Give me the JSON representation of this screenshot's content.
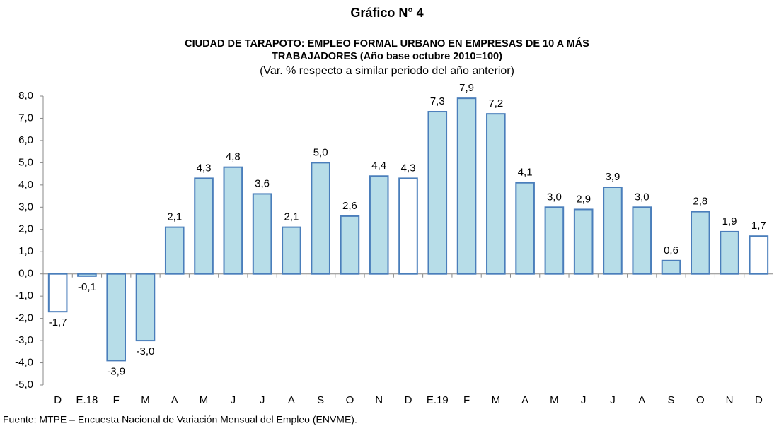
{
  "chart_data": {
    "type": "bar",
    "title": "Gráfico N° 4",
    "subtitle": [
      "CIUDAD DE TARAPOTO: EMPLEO FORMAL URBANO EN EMPRESAS DE 10 A MÁS",
      "TRABAJADORES (Año base octubre 2010=100)"
    ],
    "note": "(Var. % respecto a similar periodo del año anterior)",
    "source": "Fuente: MTPE – Encuesta Nacional de Variación Mensual del Empleo (ENVME).",
    "categories": [
      "D",
      "E.18",
      "F",
      "M",
      "A",
      "M",
      "J",
      "J",
      "A",
      "S",
      "O",
      "N",
      "D",
      "E.19",
      "F",
      "M",
      "A",
      "M",
      "J",
      "J",
      "A",
      "S",
      "O",
      "N",
      "D"
    ],
    "values": [
      -1.7,
      -0.1,
      -3.9,
      -3.0,
      2.1,
      4.3,
      4.8,
      3.6,
      2.1,
      5.0,
      2.6,
      4.4,
      4.3,
      7.3,
      7.9,
      7.2,
      4.1,
      3.0,
      2.9,
      3.9,
      3.0,
      0.6,
      2.8,
      1.9,
      1.7
    ],
    "value_labels": [
      "-1,7",
      "-0,1",
      "-3,9",
      "-3,0",
      "2,1",
      "4,3",
      "4,8",
      "3,6",
      "2,1",
      "5,0",
      "2,6",
      "4,4",
      "4,3",
      "7,3",
      "7,9",
      "7,2",
      "4,1",
      "3,0",
      "2,9",
      "3,9",
      "3,0",
      "0,6",
      "2,8",
      "1,9",
      "1,7"
    ],
    "colors": [
      "#ffffff",
      "#b7dde8",
      "#b7dde8",
      "#b7dde8",
      "#b7dde8",
      "#b7dde8",
      "#b7dde8",
      "#b7dde8",
      "#b7dde8",
      "#b7dde8",
      "#b7dde8",
      "#b7dde8",
      "#ffffff",
      "#b7dde8",
      "#b7dde8",
      "#b7dde8",
      "#b7dde8",
      "#b7dde8",
      "#b7dde8",
      "#b7dde8",
      "#b7dde8",
      "#b7dde8",
      "#b7dde8",
      "#b7dde8",
      "#ffffff"
    ],
    "edge_color": "#4a7ebb",
    "ylim": [
      -5,
      8
    ],
    "yticks": [
      {
        "value": -5,
        "label": "-5,0"
      },
      {
        "value": -4,
        "label": "-4,0"
      },
      {
        "value": -3,
        "label": "-3,0"
      },
      {
        "value": -2,
        "label": "-2,0"
      },
      {
        "value": -1,
        "label": "-1,0"
      },
      {
        "value": 0,
        "label": "0,0"
      },
      {
        "value": 1,
        "label": "1,0"
      },
      {
        "value": 2,
        "label": "2,0"
      },
      {
        "value": 3,
        "label": "3,0"
      },
      {
        "value": 4,
        "label": "4,0"
      },
      {
        "value": 5,
        "label": "5,0"
      },
      {
        "value": 6,
        "label": "6,0"
      },
      {
        "value": 7,
        "label": "7,0"
      },
      {
        "value": 8,
        "label": "8,0"
      }
    ],
    "grid": false
  }
}
